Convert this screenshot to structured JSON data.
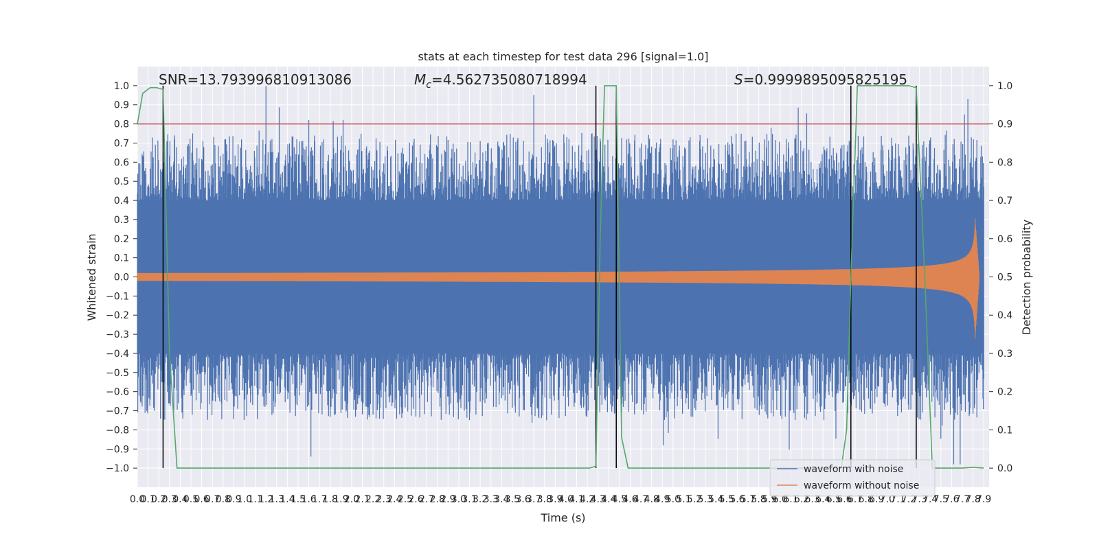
{
  "chart_data": {
    "type": "line",
    "title": "stats at each timestep for test data 296 [signal=1.0]",
    "xlabel": "Time (s)",
    "ylabel_left": "Whitened strain",
    "ylabel_right": "Detection probability",
    "xlim": [
      0.0,
      7.95
    ],
    "ylim_left": [
      -1.1,
      1.1
    ],
    "ylim_right": [
      -0.05,
      1.05
    ],
    "x_ticks": [
      "0.0",
      "0.1",
      "0.2",
      "0.3",
      "0.4",
      "0.5",
      "0.6",
      "0.7",
      "0.8",
      "0.9",
      "1.0",
      "1.1",
      "1.2",
      "1.3",
      "1.4",
      "1.5",
      "1.6",
      "1.7",
      "1.8",
      "1.9",
      "2.0",
      "2.1",
      "2.2",
      "2.3",
      "2.4",
      "2.5",
      "2.6",
      "2.7",
      "2.8",
      "2.9",
      "3.0",
      "3.1",
      "3.2",
      "3.3",
      "3.4",
      "3.5",
      "3.6",
      "3.7",
      "3.8",
      "3.9",
      "4.0",
      "4.1",
      "4.2",
      "4.3",
      "4.4",
      "4.5",
      "4.6",
      "4.7",
      "4.8",
      "4.9",
      "5.0",
      "5.1",
      "5.2",
      "5.3",
      "5.4",
      "5.5",
      "5.6",
      "5.7",
      "5.8",
      "5.9",
      "6.0",
      "6.1",
      "6.2",
      "6.3",
      "6.4",
      "6.5",
      "6.6",
      "6.7",
      "6.8",
      "6.9",
      "7.0",
      "7.1",
      "7.2",
      "7.3",
      "7.4",
      "7.5",
      "7.6",
      "7.7",
      "7.8",
      "7.9"
    ],
    "y_ticks_left": [
      "1.0",
      "0.9",
      "0.8",
      "0.7",
      "0.6",
      "0.5",
      "0.4",
      "0.3",
      "0.2",
      "0.1",
      "0.0",
      "−0.1",
      "−0.2",
      "−0.3",
      "−0.4",
      "−0.5",
      "−0.6",
      "−0.7",
      "−0.8",
      "−0.9",
      "−1.0"
    ],
    "y_ticks_right": [
      "1.0",
      "0.9",
      "0.8",
      "0.7",
      "0.6",
      "0.5",
      "0.4",
      "0.3",
      "0.2",
      "0.1",
      "0.0"
    ],
    "annotations": {
      "snr": "SNR=13.793996810913086",
      "mc_symbol": "M",
      "mc_sub": "c",
      "mc_value": "=4.562735080718994",
      "s_symbol": "S",
      "s_value": "=0.9999895095825195"
    },
    "threshold": 0.9,
    "vertical_lines": [
      0.24,
      4.28,
      4.47,
      6.66,
      7.27
    ],
    "detection_probability": {
      "x": [
        0.0,
        0.05,
        0.12,
        0.18,
        0.24,
        0.3,
        0.37,
        0.45,
        1.0,
        2.0,
        3.0,
        4.0,
        4.22,
        4.28,
        4.32,
        4.36,
        4.42,
        4.47,
        4.52,
        4.58,
        4.65,
        5.0,
        6.0,
        6.57,
        6.62,
        6.66,
        6.72,
        6.8,
        7.0,
        7.2,
        7.27,
        7.35,
        7.42,
        7.5,
        7.7,
        7.8,
        7.9
      ],
      "y": [
        0.9,
        0.98,
        0.995,
        0.995,
        0.99,
        0.3,
        0.0,
        0.0,
        0.0,
        0.0,
        0.0,
        0.0,
        0.0,
        0.005,
        0.6,
        1.0,
        1.0,
        1.0,
        0.08,
        0.0,
        0.0,
        0.0,
        0.0,
        0.0,
        0.1,
        0.5,
        1.0,
        1.0,
        1.0,
        1.0,
        0.995,
        0.5,
        0.0,
        0.0,
        0.0,
        0.002,
        0.0
      ]
    },
    "series": [
      {
        "name": "waveform with noise",
        "color": "#4c72b0",
        "noise_band": 0.4,
        "peak_max": 1.0,
        "peak_min": -0.94
      },
      {
        "name": "waveform without noise",
        "color": "#dd8452",
        "start_amplitude": 0.02,
        "peak_max": 0.31,
        "peak_min": -0.35,
        "merger_time": 7.82
      }
    ],
    "legend": [
      "waveform with noise",
      "waveform without noise"
    ],
    "legend_position": "lower right",
    "colors": {
      "background": "#eaeaf2",
      "grid": "#ffffff",
      "noise": "#4c72b0",
      "clean": "#dd8452",
      "probability": "#55a868",
      "threshold": "#c44e52",
      "vlines": "#000000"
    }
  }
}
